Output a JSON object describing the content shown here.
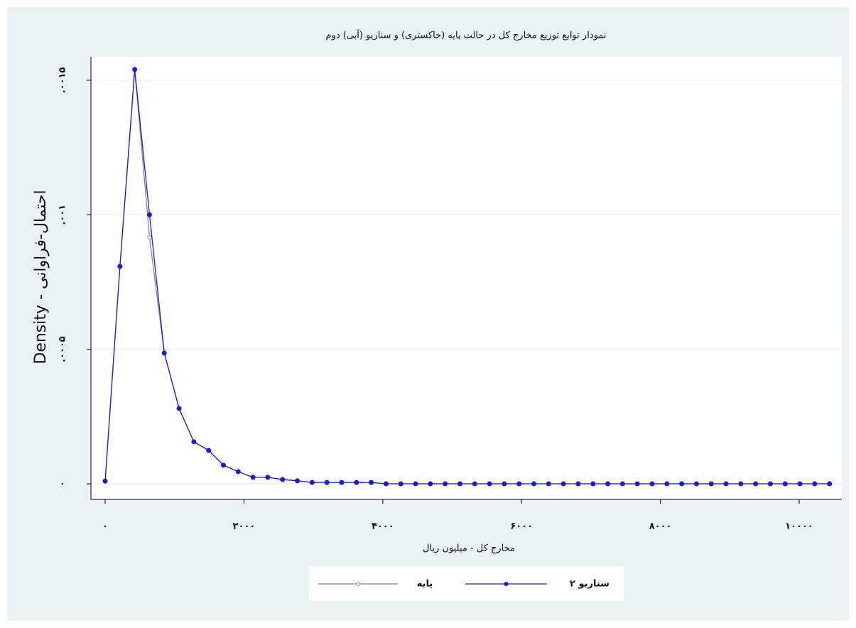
{
  "chart_data": {
    "type": "line",
    "title": "نمودار توابع توزیع مخارج کل در حالت پایه (خاکستری) و سناریو (آبی) دوم",
    "xlabel": "مخارج کل - میلیون ریال",
    "ylabel": "Density - احتمال-فراوانی",
    "x": [
      0,
      213,
      426,
      639,
      852,
      1065,
      1278,
      1491,
      1704,
      1917,
      2130,
      2343,
      2556,
      2769,
      2982,
      3195,
      3408,
      3621,
      3834,
      4047,
      4260,
      4473,
      4686,
      4899,
      5112,
      5325,
      5538,
      5751,
      5964,
      6177,
      6390,
      6603,
      6816,
      7029,
      7242,
      7455,
      7668,
      7881,
      8094,
      8307,
      8520,
      8733,
      8946,
      9159,
      9372,
      9585,
      9798,
      10011,
      10224,
      10437
    ],
    "series": [
      {
        "name": "پایه",
        "color": "#8a8a8a",
        "marker": "hollow",
        "values": [
          1e-05,
          0.000808,
          0.00154,
          0.000916,
          0.000486,
          0.00028,
          0.000156,
          0.000124,
          6.9e-05,
          4.5e-05,
          2.4e-05,
          2.4e-05,
          1.6e-05,
          1.1e-05,
          5e-06,
          5e-06,
          5e-06,
          5e-06,
          5e-06,
          0,
          0,
          0,
          0,
          0,
          0,
          0,
          0,
          0,
          0,
          0,
          0,
          0,
          0,
          0,
          0,
          0,
          0,
          0,
          0,
          0,
          0,
          0,
          0,
          0,
          0,
          0,
          0,
          0,
          0,
          0
        ]
      },
      {
        "name": "سناریو ۲",
        "color": "#1a1adb",
        "marker": "filled",
        "values": [
          1e-05,
          0.000808,
          0.00154,
          0.001,
          0.000486,
          0.00028,
          0.000156,
          0.000124,
          6.9e-05,
          4.5e-05,
          2.4e-05,
          2.4e-05,
          1.6e-05,
          1.1e-05,
          5e-06,
          5e-06,
          5e-06,
          5e-06,
          5e-06,
          0,
          0,
          0,
          0,
          0,
          0,
          0,
          0,
          0,
          0,
          0,
          0,
          0,
          0,
          0,
          0,
          0,
          0,
          0,
          0,
          0,
          0,
          0,
          0,
          0,
          0,
          0,
          0,
          0,
          0,
          0
        ]
      }
    ],
    "xlim": [
      -205,
      10614
    ],
    "ylim": [
      -5.81e-05,
      0.001587
    ],
    "xticks": [
      {
        "value": 0,
        "label": "۰"
      },
      {
        "value": 2000,
        "label": "۲۰۰۰"
      },
      {
        "value": 4000,
        "label": "۴۰۰۰"
      },
      {
        "value": 6000,
        "label": "۶۰۰۰"
      },
      {
        "value": 8000,
        "label": "۸۰۰۰"
      },
      {
        "value": 10000,
        "label": "۱۰۰۰۰"
      }
    ],
    "yticks": [
      {
        "value": 0,
        "label": "۰"
      },
      {
        "value": 0.0005,
        "label": ".۰۰۰۵"
      },
      {
        "value": 0.001,
        "label": ".۰۰۱"
      },
      {
        "value": 0.0015,
        "label": ".۰۰۱۵"
      }
    ],
    "grid": true,
    "legend": "bottom"
  }
}
